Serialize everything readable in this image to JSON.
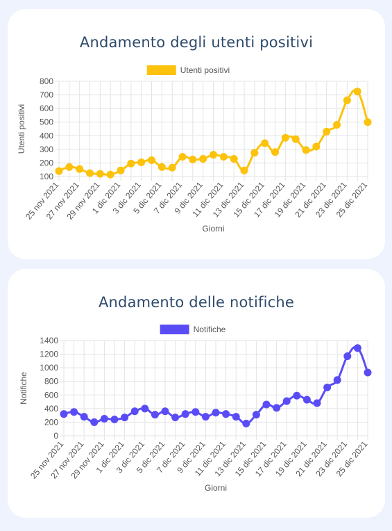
{
  "colors": {
    "positivi": "#fcc20c",
    "notifiche": "#5a4cf5",
    "grid": "#e3e3e3"
  },
  "charts": [
    {
      "id": "positivi",
      "title": "Andamento degli utenti positivi",
      "chart_data": {
        "type": "line",
        "title": "Andamento degli utenti positivi",
        "xlabel": "Giorni",
        "ylabel": "Utenti positivi",
        "ylim": [
          100,
          800
        ],
        "yticks": [
          100,
          200,
          300,
          400,
          500,
          600,
          700,
          800
        ],
        "legend": "top-center",
        "grid": true,
        "x_tick_labels": [
          "25 nov 2021",
          "27 nov 2021",
          "29 nov 2021",
          "1 dic 2021",
          "3 dic 2021",
          "5 dic 2021",
          "7 dic 2021",
          "9 dic 2021",
          "11 dic 2021",
          "13 dic 2021",
          "15 dic 2021",
          "17 dic 2021",
          "19 dic 2021",
          "21 dic 2021",
          "23 dic 2021",
          "25 dic 2021"
        ],
        "x": [
          "25 nov 2021",
          "26 nov 2021",
          "27 nov 2021",
          "28 nov 2021",
          "29 nov 2021",
          "30 nov 2021",
          "1 dic 2021",
          "2 dic 2021",
          "3 dic 2021",
          "4 dic 2021",
          "5 dic 2021",
          "6 dic 2021",
          "7 dic 2021",
          "8 dic 2021",
          "9 dic 2021",
          "10 dic 2021",
          "11 dic 2021",
          "12 dic 2021",
          "13 dic 2021",
          "14 dic 2021",
          "15 dic 2021",
          "16 dic 2021",
          "17 dic 2021",
          "18 dic 2021",
          "19 dic 2021",
          "20 dic 2021",
          "21 dic 2021",
          "22 dic 2021",
          "23 dic 2021",
          "24 dic 2021",
          "25 dic 2021"
        ],
        "series": [
          {
            "name": "Utenti positivi",
            "values": [
              140,
              170,
              155,
              125,
              120,
              115,
              145,
              195,
              205,
              220,
              170,
              165,
              245,
              225,
              230,
              260,
              245,
              230,
              145,
              275,
              345,
              280,
              385,
              375,
              295,
              320,
              430,
              480,
              660,
              725,
              500
            ]
          }
        ]
      }
    },
    {
      "id": "notifiche",
      "title": "Andamento delle notifiche",
      "chart_data": {
        "type": "line",
        "title": "Andamento delle notifiche",
        "xlabel": "Giorni",
        "ylabel": "Notifiche",
        "ylim": [
          0,
          1400
        ],
        "yticks": [
          0,
          200,
          400,
          600,
          800,
          1000,
          1200,
          1400
        ],
        "legend": "top-center",
        "grid": true,
        "x_tick_labels": [
          "25 nov 2021",
          "27 nov 2021",
          "29 nov 2021",
          "1 dic 2021",
          "3 dic 2021",
          "5 dic 2021",
          "7 dic 2021",
          "9 dic 2021",
          "11 dic 2021",
          "13 dic 2021",
          "15 dic 2021",
          "17 dic 2021",
          "19 dic 2021",
          "21 dic 2021",
          "23 dic 2021",
          "25 dic 2021"
        ],
        "x": [
          "25 nov 2021",
          "26 nov 2021",
          "27 nov 2021",
          "28 nov 2021",
          "29 nov 2021",
          "30 nov 2021",
          "1 dic 2021",
          "2 dic 2021",
          "3 dic 2021",
          "4 dic 2021",
          "5 dic 2021",
          "6 dic 2021",
          "7 dic 2021",
          "8 dic 2021",
          "9 dic 2021",
          "10 dic 2021",
          "11 dic 2021",
          "12 dic 2021",
          "13 dic 2021",
          "14 dic 2021",
          "15 dic 2021",
          "16 dic 2021",
          "17 dic 2021",
          "18 dic 2021",
          "19 dic 2021",
          "20 dic 2021",
          "21 dic 2021",
          "22 dic 2021",
          "23 dic 2021",
          "24 dic 2021",
          "25 dic 2021"
        ],
        "series": [
          {
            "name": "Notifiche",
            "values": [
              320,
              350,
              280,
              200,
              250,
              240,
              270,
              360,
              400,
              310,
              360,
              270,
              320,
              350,
              280,
              340,
              320,
              280,
              180,
              310,
              460,
              410,
              510,
              590,
              530,
              480,
              710,
              820,
              1170,
              1290,
              930
            ]
          }
        ]
      }
    }
  ]
}
